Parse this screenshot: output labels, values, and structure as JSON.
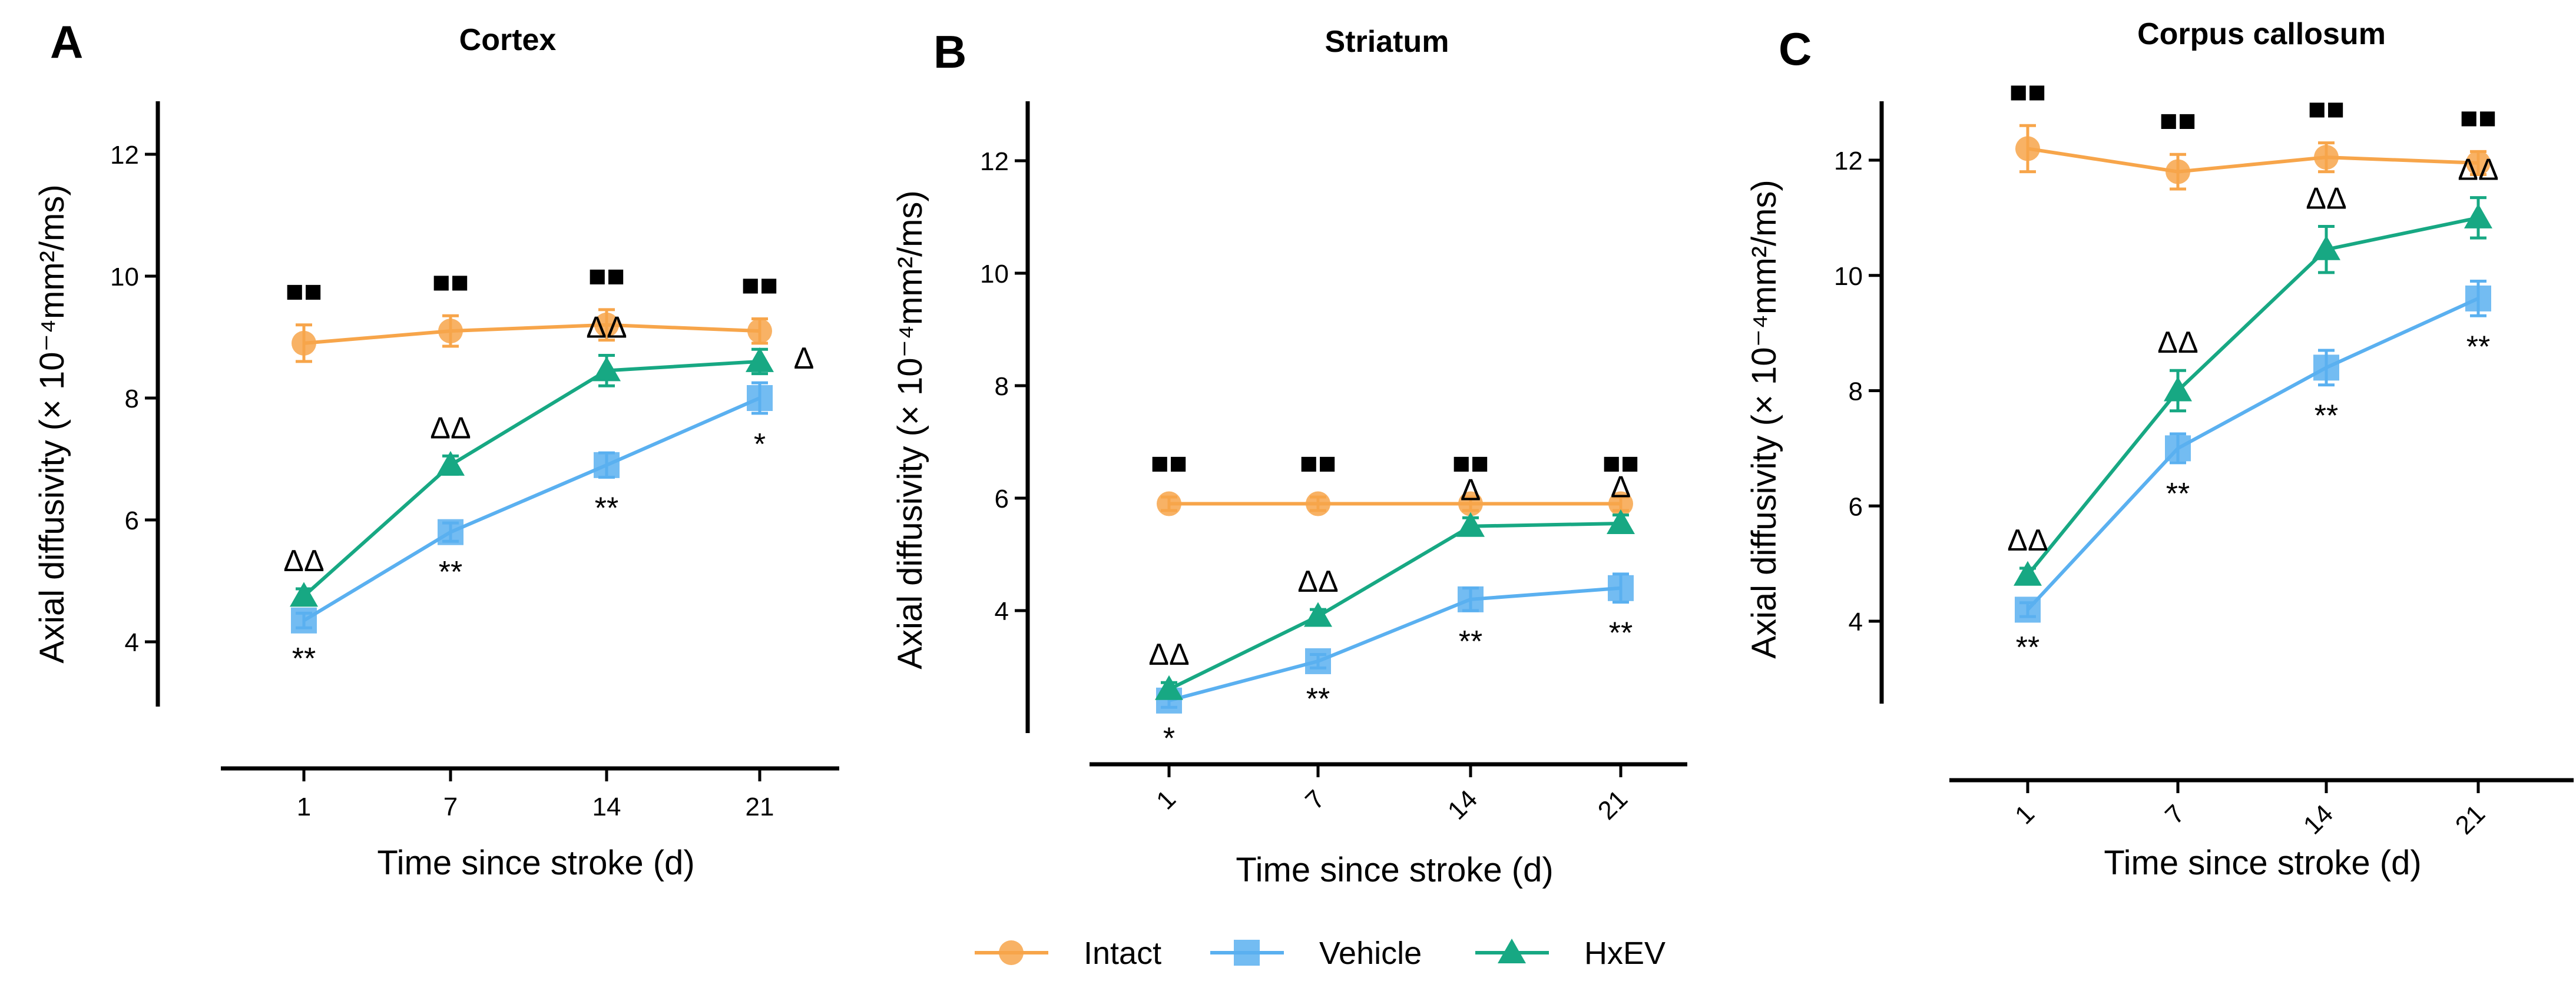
{
  "colors": {
    "Intact": "#F7A54A",
    "Vehicle": "#5AB0F0",
    "HxEV": "#17A883"
  },
  "legend": [
    {
      "name": "Intact",
      "label": "Intact"
    },
    {
      "name": "Vehicle",
      "label": "Vehicle"
    },
    {
      "name": "HxEV",
      "label": "HxEV"
    }
  ],
  "chart_data": [
    {
      "type": "line",
      "panel_label": "A",
      "title": "Cortex",
      "xlabel": "Time since stroke (d)",
      "ylabel": "Axial diffusivity (× 10⁻⁴mm²/ms)",
      "categories": [
        "1",
        "7",
        "14",
        "21"
      ],
      "ylim": [
        3,
        13
      ],
      "yticks": [
        "4",
        "6",
        "8",
        "10",
        "12"
      ],
      "series": [
        {
          "name": "Intact",
          "values": [
            8.9,
            9.1,
            9.2,
            9.1
          ],
          "errors": [
            0.3,
            0.25,
            0.25,
            0.2
          ]
        },
        {
          "name": "Vehicle",
          "values": [
            4.35,
            5.8,
            6.9,
            8.0
          ],
          "errors": [
            0.12,
            0.15,
            0.2,
            0.25
          ]
        },
        {
          "name": "HxEV",
          "values": [
            4.75,
            6.9,
            8.45,
            8.6
          ],
          "errors": [
            0.12,
            0.15,
            0.25,
            0.2
          ]
        }
      ],
      "annotations": {
        "Intact": [
          "■■",
          "■■",
          "■■",
          "■■"
        ],
        "Vehicle": [
          "**",
          "**",
          "**",
          "*"
        ],
        "HxEV": [
          "ΔΔ",
          "ΔΔ",
          "ΔΔ",
          "Δ"
        ]
      }
    },
    {
      "type": "line",
      "panel_label": "B",
      "title": "Striatum",
      "xlabel": "Time since stroke (d)",
      "ylabel": "Axial diffusivity (× 10⁻⁴mm²/ms)",
      "categories": [
        "1",
        "7",
        "14",
        "21"
      ],
      "ylim": [
        2,
        13
      ],
      "yticks": [
        "4",
        "6",
        "8",
        "10",
        "12"
      ],
      "series": [
        {
          "name": "Intact",
          "values": [
            5.9,
            5.9,
            5.9,
            5.9
          ],
          "errors": [
            0.12,
            0.12,
            0.12,
            0.12
          ]
        },
        {
          "name": "Vehicle",
          "values": [
            2.4,
            3.1,
            4.2,
            4.4
          ],
          "errors": [
            0.12,
            0.12,
            0.2,
            0.25
          ]
        },
        {
          "name": "HxEV",
          "values": [
            2.6,
            3.9,
            5.5,
            5.55
          ],
          "errors": [
            0.12,
            0.12,
            0.15,
            0.15
          ]
        }
      ],
      "annotations": {
        "Intact": [
          "■■",
          "■■",
          "■■",
          "■■"
        ],
        "Vehicle": [
          "*",
          "**",
          "**",
          "**"
        ],
        "HxEV": [
          "ΔΔ",
          "ΔΔ",
          "Δ",
          "Δ"
        ]
      }
    },
    {
      "type": "line",
      "panel_label": "C",
      "title": "Corpus callosum",
      "xlabel": "Time since stroke (d)",
      "ylabel": "Axial diffusivity (× 10⁻⁴mm²/ms)",
      "categories": [
        "1",
        "7",
        "14",
        "21"
      ],
      "ylim": [
        2.5,
        13
      ],
      "yticks": [
        "4",
        "6",
        "8",
        "10",
        "12"
      ],
      "series": [
        {
          "name": "Intact",
          "values": [
            12.2,
            11.8,
            12.05,
            11.95
          ],
          "errors": [
            0.4,
            0.3,
            0.25,
            0.2
          ]
        },
        {
          "name": "Vehicle",
          "values": [
            4.2,
            7.0,
            8.4,
            9.6
          ],
          "errors": [
            0.12,
            0.25,
            0.3,
            0.3
          ]
        },
        {
          "name": "HxEV",
          "values": [
            4.8,
            8.0,
            10.45,
            11.0
          ],
          "errors": [
            0.12,
            0.35,
            0.4,
            0.35
          ]
        }
      ],
      "annotations": {
        "Intact": [
          "■■",
          "■■",
          "■■",
          "■■"
        ],
        "Vehicle": [
          "**",
          "**",
          "**",
          "**"
        ],
        "HxEV": [
          "ΔΔ",
          "ΔΔ",
          "ΔΔ",
          "ΔΔ"
        ]
      }
    }
  ]
}
